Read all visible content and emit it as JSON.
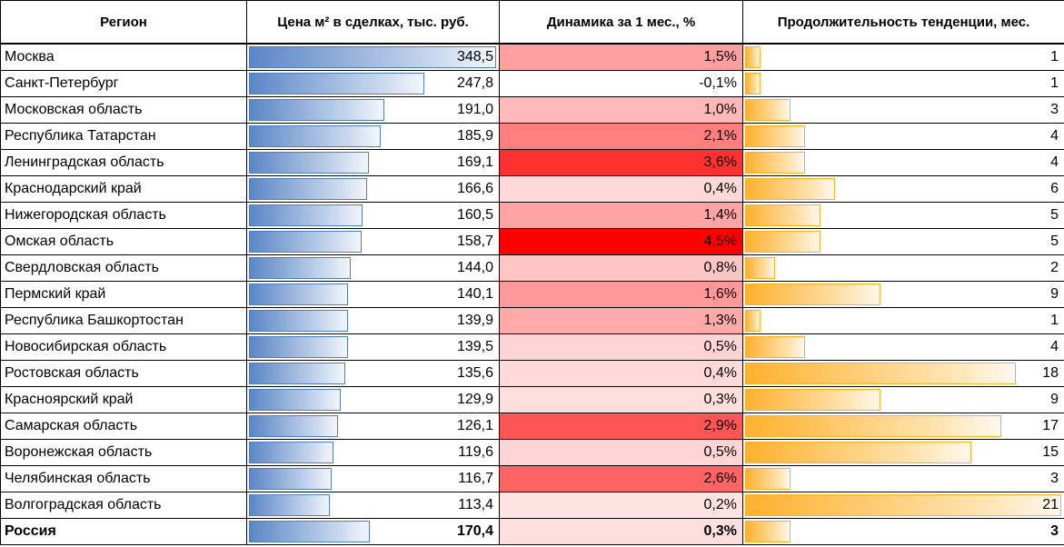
{
  "table": {
    "headers": {
      "region": "Регион",
      "price": "Цена м² в сделках, тыс. руб.",
      "dynamics": "Динамика за 1 мес., %",
      "duration": "Продолжительность тенденции, мес."
    },
    "rows": [
      {
        "region": "Москва",
        "price": "348,5",
        "price_value": 348.5,
        "dynamics": "1,5%",
        "dyn_value": 1.5,
        "duration": "1",
        "duration_value": 1
      },
      {
        "region": "Санкт-Петербург",
        "price": "247,8",
        "price_value": 247.8,
        "dynamics": "-0,1%",
        "dyn_value": -0.1,
        "duration": "1",
        "duration_value": 1
      },
      {
        "region": "Московская область",
        "price": "191,0",
        "price_value": 191.0,
        "dynamics": "1,0%",
        "dyn_value": 1.0,
        "duration": "3",
        "duration_value": 3
      },
      {
        "region": "Республика Татарстан",
        "price": "185,9",
        "price_value": 185.9,
        "dynamics": "2,1%",
        "dyn_value": 2.1,
        "duration": "4",
        "duration_value": 4
      },
      {
        "region": "Ленинградская область",
        "price": "169,1",
        "price_value": 169.1,
        "dynamics": "3,6%",
        "dyn_value": 3.6,
        "duration": "4",
        "duration_value": 4
      },
      {
        "region": "Краснодарский край",
        "price": "166,6",
        "price_value": 166.6,
        "dynamics": "0,4%",
        "dyn_value": 0.4,
        "duration": "6",
        "duration_value": 6
      },
      {
        "region": "Нижегородская область",
        "price": "160,5",
        "price_value": 160.5,
        "dynamics": "1,4%",
        "dyn_value": 1.4,
        "duration": "5",
        "duration_value": 5
      },
      {
        "region": "Омская область",
        "price": "158,7",
        "price_value": 158.7,
        "dynamics": "4,5%",
        "dyn_value": 4.5,
        "duration": "5",
        "duration_value": 5
      },
      {
        "region": "Свердловская область",
        "price": "144,0",
        "price_value": 144.0,
        "dynamics": "0,8%",
        "dyn_value": 0.8,
        "duration": "2",
        "duration_value": 2
      },
      {
        "region": "Пермский край",
        "price": "140,1",
        "price_value": 140.1,
        "dynamics": "1,6%",
        "dyn_value": 1.6,
        "duration": "9",
        "duration_value": 9
      },
      {
        "region": "Республика Башкортостан",
        "price": "139,9",
        "price_value": 139.9,
        "dynamics": "1,3%",
        "dyn_value": 1.3,
        "duration": "1",
        "duration_value": 1
      },
      {
        "region": "Новосибирская область",
        "price": "139,5",
        "price_value": 139.5,
        "dynamics": "0,5%",
        "dyn_value": 0.5,
        "duration": "4",
        "duration_value": 4
      },
      {
        "region": "Ростовская область",
        "price": "135,6",
        "price_value": 135.6,
        "dynamics": "0,4%",
        "dyn_value": 0.4,
        "duration": "18",
        "duration_value": 18
      },
      {
        "region": "Красноярский край",
        "price": "129,9",
        "price_value": 129.9,
        "dynamics": "0,3%",
        "dyn_value": 0.3,
        "duration": "9",
        "duration_value": 9
      },
      {
        "region": "Самарская область",
        "price": "126,1",
        "price_value": 126.1,
        "dynamics": "2,9%",
        "dyn_value": 2.9,
        "duration": "17",
        "duration_value": 17
      },
      {
        "region": "Воронежская область",
        "price": "119,6",
        "price_value": 119.6,
        "dynamics": "0,5%",
        "dyn_value": 0.5,
        "duration": "15",
        "duration_value": 15
      },
      {
        "region": "Челябинская область",
        "price": "116,7",
        "price_value": 116.7,
        "dynamics": "2,6%",
        "dyn_value": 2.6,
        "duration": "3",
        "duration_value": 3
      },
      {
        "region": "Волгоградская область",
        "price": "113,4",
        "price_value": 113.4,
        "dynamics": "0,2%",
        "dyn_value": 0.2,
        "duration": "21",
        "duration_value": 21
      },
      {
        "region": "Россия",
        "price": "170,4",
        "price_value": 170.4,
        "dynamics": "0,3%",
        "dyn_value": 0.3,
        "duration": "3",
        "duration_value": 3,
        "total": true
      }
    ],
    "scale": {
      "price_max": 348.5,
      "dyn_max": 4.5,
      "duration_max": 21
    },
    "colors": {
      "dyn_high": "#ff0000",
      "dyn_low": "#fff0f0",
      "price_bar": "#5b86c6",
      "trend_bar": "#ffb12e"
    }
  }
}
